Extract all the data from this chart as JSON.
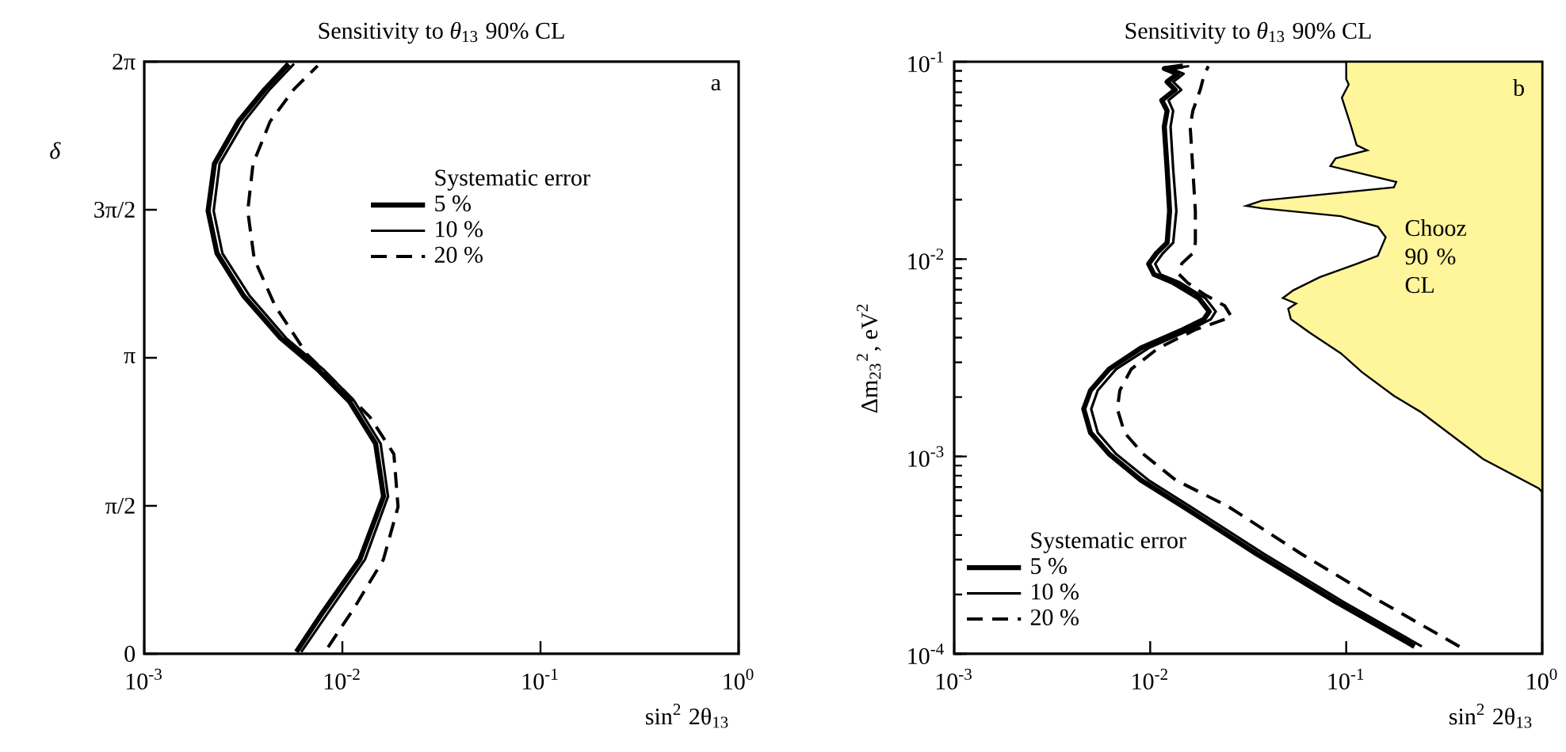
{
  "chart_data": [
    {
      "type": "line",
      "title": "Sensitivity to *θ*$_{13}$ 90% CL",
      "xlabel": "sin$^{2}$ 2θ$_{13}$",
      "ylabel": "*δ*",
      "legend_title": "Systematic error",
      "legend": "top",
      "log": "x",
      "marker": "none",
      "xlim": [
        0.001,
        1
      ],
      "ylim": [
        0,
        6.2832
      ],
      "xticks": [
        {
          "value": 0.001,
          "label": "10$^{-3}$"
        },
        {
          "value": 0.01,
          "label": "10$^{-2}$"
        },
        {
          "value": 0.1,
          "label": "10$^{-1}$"
        },
        {
          "value": 1,
          "label": "10$^{0}$"
        }
      ],
      "yticks": [
        0,
        {
          "value": 1.5708,
          "label": "π/2"
        },
        {
          "value": 3.1416,
          "label": "π"
        },
        {
          "value": 4.7124,
          "label": "3π/2"
        },
        {
          "value": 6.2832,
          "label": "2π"
        }
      ],
      "annotations": [
        "a"
      ],
      "series": [
        {
          "name": "5 %",
          "color": "#000000",
          "line_style": "solid",
          "x": [
            0.00586,
            0.00796,
            0.01225,
            0.01614,
            0.01472,
            0.01084,
            0.0075,
            0.00488,
            0.00317,
            0.00233,
            0.0021,
            0.00226,
            0.00299,
            0.00406,
            0.00535
          ],
          "values": [
            0.02,
            0.44,
            1.0,
            1.67,
            2.23,
            2.68,
            3.02,
            3.35,
            3.8,
            4.25,
            4.7,
            5.2,
            5.65,
            5.99,
            6.26
          ]
        },
        {
          "name": "10 %",
          "color": "#000000",
          "line_style": "solid",
          "x": [
            0.0062,
            0.0085,
            0.013,
            0.017,
            0.0156,
            0.0115,
            0.008,
            0.0052,
            0.0034,
            0.00248,
            0.00224,
            0.0024,
            0.0032,
            0.0043,
            0.0057
          ],
          "values": [
            0.02,
            0.44,
            1.0,
            1.67,
            2.23,
            2.68,
            3.02,
            3.35,
            3.8,
            4.25,
            4.7,
            5.2,
            5.65,
            5.99,
            6.26
          ]
        },
        {
          "name": "20 %",
          "color": "#000000",
          "line_style": "dashed",
          "x": [
            0.00847,
            0.0115,
            0.0161,
            0.0191,
            0.0182,
            0.0138,
            0.00957,
            0.00662,
            0.00458,
            0.00359,
            0.00333,
            0.00354,
            0.00432,
            0.00569,
            0.0075
          ],
          "values": [
            0.07,
            0.49,
            1.0,
            1.56,
            2.12,
            2.51,
            2.85,
            3.18,
            3.69,
            4.19,
            4.7,
            5.2,
            5.65,
            5.99,
            6.24
          ]
        }
      ]
    },
    {
      "type": "line",
      "title": "Sensitivity to *θ*$_{13}$ 90% CL",
      "xlabel": "sin$^{2}$ 2θ$_{13}$",
      "ylabel": "Δm$_{23}$$^{2}$, eV$^{2}$",
      "legend_title": "Systematic error",
      "legend": "bottom left",
      "log": "xy",
      "marker": "none",
      "xlim": [
        0.001,
        1
      ],
      "ylim": [
        0.0001,
        0.1
      ],
      "xticks": [
        {
          "value": 0.001,
          "label": "10$^{-3}$"
        },
        {
          "value": 0.01,
          "label": "10$^{-2}$"
        },
        {
          "value": 0.1,
          "label": "10$^{-1}$"
        },
        {
          "value": 1,
          "label": "10$^{0}$"
        }
      ],
      "yticks": [
        {
          "value": 0.0001,
          "label": "10$^{-4}$"
        },
        {
          "value": 0.001,
          "label": "10$^{-3}$"
        },
        {
          "value": 0.01,
          "label": "10$^{-2}$"
        },
        {
          "value": 0.1,
          "label": "10$^{-1}$"
        }
      ],
      "annotations": [
        "b"
      ],
      "series": [
        {
          "name": "5 %",
          "color": "#000000",
          "line_style": "solid",
          "x": [
            0.223,
            0.0883,
            0.0349,
            0.01469,
            0.00896,
            0.00617,
            0.00496,
            0.00458,
            0.00496,
            0.00617,
            0.00896,
            0.0147,
            0.0188,
            0.02,
            0.0177,
            0.013,
            0.01045,
            0.00982,
            0.01076,
            0.0122,
            0.01256,
            0.0122,
            0.0118,
            0.0122,
            0.01146,
            0.0134,
            0.0122,
            0.0138,
            0.0118,
            0.0147
          ],
          "values": [
            0.000109,
            0.000184,
            0.000321,
            0.000558,
            0.000759,
            0.00103,
            0.00132,
            0.00174,
            0.00216,
            0.00277,
            0.00354,
            0.00439,
            0.00496,
            0.00543,
            0.00635,
            0.00764,
            0.00837,
            0.00946,
            0.0107,
            0.0121,
            0.01754,
            0.0286,
            0.0469,
            0.0564,
            0.0638,
            0.0721,
            0.0791,
            0.0868,
            0.0924,
            0.0951
          ]
        },
        {
          "name": "10 %",
          "color": "#000000",
          "line_style": "solid",
          "x": [
            0.243,
            0.096,
            0.038,
            0.016,
            0.0098,
            0.0067,
            0.0054,
            0.005,
            0.0054,
            0.0067,
            0.0098,
            0.016,
            0.0204,
            0.0216,
            0.0191,
            0.0141,
            0.0113,
            0.0106,
            0.0116,
            0.0131,
            0.0136,
            0.0131,
            0.0127,
            0.0131,
            0.0124,
            0.0144,
            0.0131,
            0.0148,
            0.0127,
            0.0158
          ],
          "values": [
            0.000109,
            0.000184,
            0.000321,
            0.000558,
            0.000759,
            0.00103,
            0.00132,
            0.00174,
            0.00216,
            0.00277,
            0.00354,
            0.00439,
            0.00496,
            0.00543,
            0.00635,
            0.00764,
            0.00837,
            0.00946,
            0.0107,
            0.0121,
            0.01754,
            0.0286,
            0.0469,
            0.0564,
            0.0638,
            0.0721,
            0.0791,
            0.0868,
            0.0924,
            0.0951
          ]
        },
        {
          "name": "20 %",
          "color": "#000000",
          "line_style": "dashed",
          "x": [
            0.378,
            0.15,
            0.059,
            0.025,
            0.0135,
            0.0092,
            0.0074,
            0.0068,
            0.007,
            0.008,
            0.011,
            0.017,
            0.026,
            0.024,
            0.019,
            0.0155,
            0.014,
            0.0145,
            0.0165,
            0.017,
            0.017,
            0.0165,
            0.016,
            0.0165,
            0.018,
            0.0188,
            0.0198
          ],
          "values": [
            0.000109,
            0.000184,
            0.000321,
            0.000558,
            0.000759,
            0.00103,
            0.00132,
            0.00174,
            0.00216,
            0.00277,
            0.00354,
            0.00439,
            0.0051,
            0.0058,
            0.0066,
            0.0076,
            0.0084,
            0.0095,
            0.0107,
            0.0121,
            0.0175,
            0.0286,
            0.0469,
            0.0564,
            0.0721,
            0.085,
            0.095
          ]
        },
        {
          "type": "area",
          "name": "Chooz 90 % CL",
          "color": "#fff59a",
          "x": [
            1,
            0.1,
            0.1,
            0.103,
            0.095,
            0.106,
            0.113,
            0.128,
            0.0883,
            0.083,
            0.18,
            0.175,
            0.0372,
            0.0309,
            0.0372,
            0.094,
            0.145,
            0.159,
            0.145,
            0.113,
            0.0733,
            0.0538,
            0.0475,
            0.0555,
            0.0506,
            0.0522,
            0.0649,
            0.094,
            0.12,
            0.175,
            0.238,
            0.5,
            0.96,
            1.0
          ],
          "values": [
            0.1,
            0.1,
            0.0817,
            0.0767,
            0.0658,
            0.0469,
            0.0378,
            0.0356,
            0.0324,
            0.0296,
            0.0246,
            0.0231,
            0.0198,
            0.0186,
            0.0181,
            0.0165,
            0.0146,
            0.0129,
            0.0104,
            0.00946,
            0.0081,
            0.00696,
            0.00635,
            0.00596,
            0.00561,
            0.00496,
            0.00425,
            0.00333,
            0.00268,
            0.00203,
            0.00169,
            0.00097,
            0.00069,
            0.00066
          ]
        }
      ]
    }
  ]
}
